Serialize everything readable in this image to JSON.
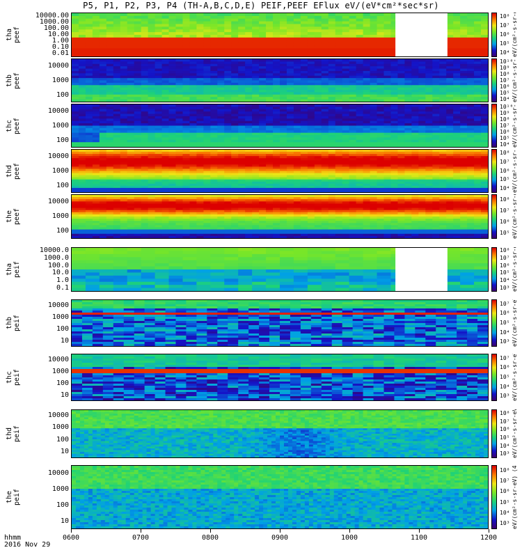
{
  "title": "P5, P1, P2, P3, P4 (TH-A,B,C,D,E) PEIF,PEEF EFlux eV/(eV*cm²*sec*sr)",
  "footer": {
    "time_label": "hhmm",
    "date_label": "2016 Nov 29"
  },
  "x_axis": {
    "ticks": [
      "0600",
      "0700",
      "0800",
      "0900",
      "1000",
      "1100",
      "1200"
    ]
  },
  "colors": {
    "black": "#000000",
    "gap": "#ffffff"
  },
  "chart_data": {
    "type": "heatmap",
    "title": "P5, P1, P2, P3, P4 (TH-A,B,C,D,E) PEIF,PEEF EFlux eV/(eV*cm²*sec*sr)",
    "xlabel": "hhmm",
    "x_range": [
      "0600",
      "1200"
    ],
    "colormap": "rainbow (purple-blue-cyan-green-yellow-red)",
    "panels": [
      {
        "name": "tha peef",
        "ylabel": [
          "tha",
          "peef"
        ],
        "yticks": [
          "10000.00",
          "1000.00",
          "100.00",
          "10.00",
          "1.00",
          "0.10",
          "0.01"
        ],
        "cbar_ticks": [
          "10⁸",
          "10⁷",
          "10⁶",
          "10⁵",
          "10⁴"
        ],
        "cbar_label": "eV/(cm²-s-sr-eV) (4)",
        "data_gap": [
          "1040",
          "1125"
        ]
      },
      {
        "name": "thb peef",
        "ylabel": [
          "thb",
          "peef"
        ],
        "yticks": [
          "10000",
          "1000",
          "100"
        ],
        "cbar_ticks": [
          "10¹⁰",
          "10⁹",
          "10⁸",
          "10⁷",
          "10⁶",
          "10⁵",
          "10⁴"
        ],
        "cbar_label": "eV/(cm²-s-sr-eV) (4)"
      },
      {
        "name": "thc peef",
        "ylabel": [
          "thc",
          "peef"
        ],
        "yticks": [
          "10000",
          "1000",
          "100"
        ],
        "cbar_ticks": [
          "10¹⁰",
          "10⁹",
          "10⁸",
          "10⁷",
          "10⁶",
          "10⁵",
          "10⁴"
        ],
        "cbar_label": "eV/(cm²-s-sr-eV) (4)"
      },
      {
        "name": "thd peef",
        "ylabel": [
          "thd",
          "peef"
        ],
        "yticks": [
          "10000",
          "1000",
          "100"
        ],
        "cbar_ticks": [
          "10⁸",
          "10⁷",
          "10⁶",
          "10⁵",
          "10⁴"
        ],
        "cbar_label": "eV/(cm²-s-sr-eV) (4)"
      },
      {
        "name": "the peef",
        "ylabel": [
          "the",
          "peef"
        ],
        "yticks": [
          "10000",
          "1000",
          "100"
        ],
        "cbar_ticks": [
          "10⁸",
          "10⁷",
          "10⁶",
          "10⁵"
        ],
        "cbar_label": "eV/(cm²-s-sr-eV) (4)"
      },
      {
        "name": "tha peif",
        "ylabel": [
          "tha",
          "peif"
        ],
        "yticks": [
          "10000.0",
          "1000.0",
          "100.0",
          "10.0",
          "1.0",
          "0.1"
        ],
        "cbar_ticks": [
          "10⁸",
          "10⁷",
          "10⁶",
          "10⁵",
          "10⁴",
          "10³"
        ],
        "cbar_label": "eV/(cm²-s-sr-eV) (4)",
        "data_gap": [
          "1040",
          "1125"
        ]
      },
      {
        "name": "thb peif",
        "ylabel": [
          "thb",
          "peif"
        ],
        "yticks": [
          "10000",
          "1000",
          "100",
          "10"
        ],
        "cbar_ticks": [
          "10⁷",
          "10⁶",
          "10⁵",
          "10⁴",
          "10³"
        ],
        "cbar_label": "eV/(cm²-s-sr-eV) (4)"
      },
      {
        "name": "thc peif",
        "ylabel": [
          "thc",
          "peif"
        ],
        "yticks": [
          "10000",
          "1000",
          "100",
          "10"
        ],
        "cbar_ticks": [
          "10⁷",
          "10⁶",
          "10⁵",
          "10⁴",
          "10³"
        ],
        "cbar_label": "eV/(cm²-s-sr-eV) (4)"
      },
      {
        "name": "thd peif",
        "ylabel": [
          "thd",
          "peif"
        ],
        "yticks": [
          "10000",
          "1000",
          "100",
          "10"
        ],
        "cbar_ticks": [
          "10⁸",
          "10⁷",
          "10⁶",
          "10⁵",
          "10⁴",
          "10³"
        ],
        "cbar_label": "eV/(cm²-s-sr-eV) (4)"
      },
      {
        "name": "the peif",
        "ylabel": [
          "the",
          "peif"
        ],
        "yticks": [
          "10000",
          "1000",
          "100",
          "10"
        ],
        "cbar_ticks": [
          "10⁸",
          "10⁷",
          "10⁶",
          "10⁵",
          "10⁴",
          "10³"
        ],
        "cbar_label": "eV/(cm²-s-sr-eV) (4)"
      }
    ]
  }
}
